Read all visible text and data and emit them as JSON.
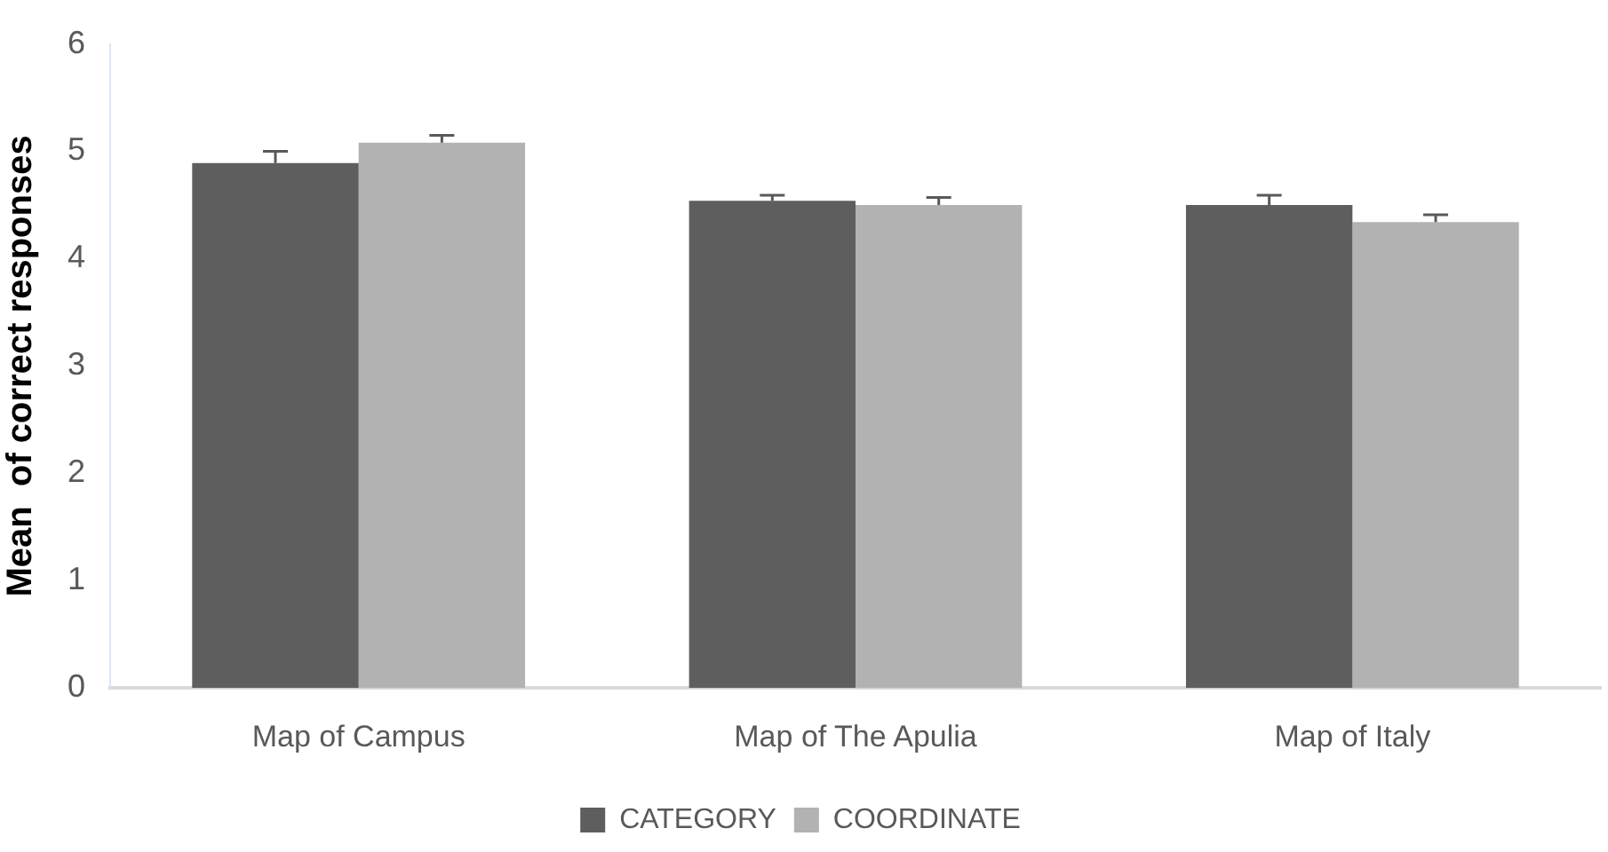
{
  "chart_data": {
    "type": "bar",
    "ylabel": "Mean  of correct responses",
    "categories": [
      "Map of Campus",
      "Map of The Apulia",
      "Map of Italy"
    ],
    "series": [
      {
        "name": "CATEGORY",
        "color": "#5e5e5e",
        "values": [
          4.89,
          4.54,
          4.5
        ],
        "errors": [
          [
            4.89,
            5.0
          ],
          [
            4.54,
            4.59
          ],
          [
            4.5,
            4.59
          ]
        ]
      },
      {
        "name": "COORDINATE",
        "color": "#b2b2b2",
        "values": [
          5.08,
          4.5,
          4.34
        ],
        "errors": [
          [
            5.08,
            5.15
          ],
          [
            4.5,
            4.57
          ],
          [
            4.34,
            4.41
          ]
        ]
      }
    ],
    "ylim": [
      0,
      6
    ],
    "yticks": [
      0,
      1,
      2,
      3,
      4,
      5,
      6
    ],
    "grid": false,
    "legend": "bottom"
  }
}
